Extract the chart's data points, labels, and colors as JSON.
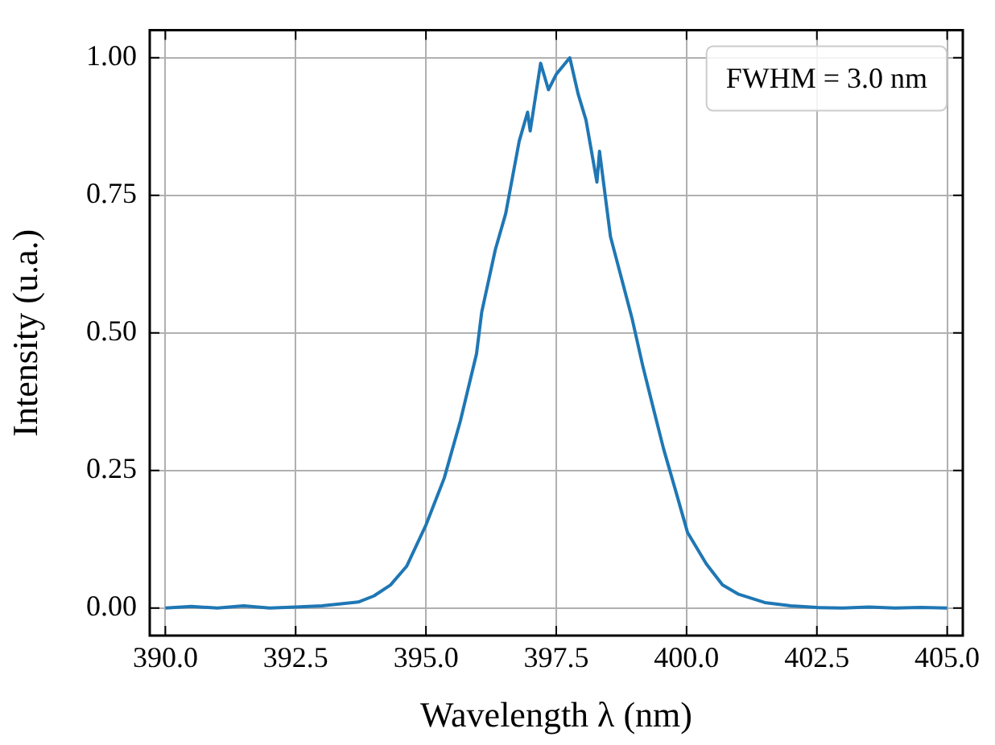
{
  "chart_data": {
    "type": "line",
    "xlabel": "Wavelength λ (nm)",
    "ylabel": "Intensity (u.a.)",
    "annotations": [
      "FWHM = 3.0 nm"
    ],
    "xlim": [
      389.7,
      405.3
    ],
    "ylim": [
      -0.05,
      1.05
    ],
    "xticks": [
      {
        "value": 390,
        "label": "390.0"
      },
      {
        "value": 392.5,
        "label": "392.5"
      },
      {
        "value": 395,
        "label": "395.0"
      },
      {
        "value": 397.5,
        "label": "397.5"
      },
      {
        "value": 400,
        "label": "400.0"
      },
      {
        "value": 402.5,
        "label": "402.5"
      },
      {
        "value": 405,
        "label": "405.0"
      }
    ],
    "yticks": [
      {
        "value": 0,
        "label": "0.00"
      },
      {
        "value": 0.25,
        "label": "0.25"
      },
      {
        "value": 0.5,
        "label": "0.50"
      },
      {
        "value": 0.75,
        "label": "0.75"
      },
      {
        "value": 1,
        "label": "1.00"
      }
    ],
    "grid": true,
    "marker": "none",
    "line_style": "solid",
    "series": [
      {
        "color": "#1f77b4",
        "x": [
          390,
          390.5,
          391,
          391.5,
          392,
          392.5,
          393,
          393.3,
          393.7,
          394.0,
          394.32,
          394.63,
          395.0,
          395.35,
          395.66,
          395.97,
          396.07,
          396.33,
          396.53,
          396.79,
          396.95,
          397.0,
          397.2,
          397.35,
          397.5,
          397.76,
          397.92,
          398.07,
          398.28,
          398.33,
          398.54,
          398.75,
          398.95,
          399.16,
          399.36,
          399.56,
          399.8,
          400.02,
          400.38,
          400.69,
          401.0,
          401.5,
          402,
          402.5,
          403,
          403.5,
          404,
          404.5,
          405
        ],
        "values": [
          0,
          0.003,
          0,
          0.004,
          0,
          0.002,
          0.004,
          0.007,
          0.011,
          0.022,
          0.042,
          0.076,
          0.151,
          0.236,
          0.34,
          0.462,
          0.538,
          0.651,
          0.717,
          0.849,
          0.901,
          0.867,
          0.99,
          0.942,
          0.97,
          1.0,
          0.934,
          0.887,
          0.774,
          0.83,
          0.675,
          0.6,
          0.528,
          0.44,
          0.364,
          0.289,
          0.21,
          0.137,
          0.08,
          0.042,
          0.025,
          0.01,
          0.004,
          0.001,
          0,
          0.002,
          0,
          0.001,
          0
        ]
      }
    ]
  }
}
